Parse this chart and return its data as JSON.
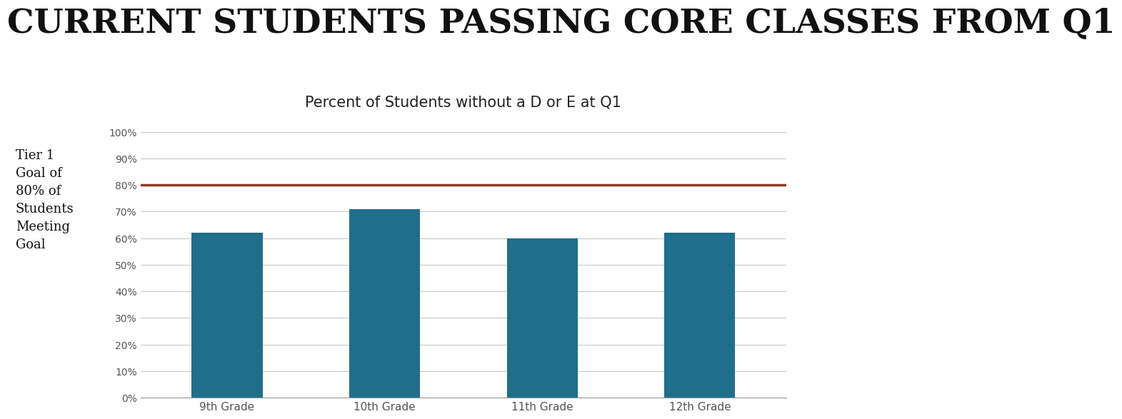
{
  "title": "CURRENT STUDENTS PASSING CORE CLASSES FROM Q1",
  "chart_title": "Percent of Students without a D or E at Q1",
  "categories": [
    "9th Grade",
    "10th Grade",
    "11th Grade",
    "12th Grade"
  ],
  "values": [
    0.62,
    0.71,
    0.6,
    0.62
  ],
  "bar_color": "#1f6e8c",
  "goal_line": 0.8,
  "goal_line_color": "#8b3a2a",
  "goal_label_lines": [
    "Tier 1",
    "Goal of",
    "80% of",
    "Students",
    "Meeting",
    "Goal"
  ],
  "background_color": "#ffffff",
  "yticks": [
    0.0,
    0.1,
    0.2,
    0.3,
    0.4,
    0.5,
    0.6,
    0.7,
    0.8,
    0.9,
    1.0
  ],
  "ytick_labels": [
    "0%",
    "10%",
    "20%",
    "30%",
    "40%",
    "50%",
    "60%",
    "70%",
    "80%",
    "90%",
    "100%"
  ],
  "grid_color": "#c8c8c8",
  "ylim": [
    0,
    1.05
  ],
  "title_fontsize": 34,
  "chart_title_fontsize": 15,
  "axis_fontsize": 10,
  "goal_label_fontsize": 13,
  "xtick_fontsize": 11
}
